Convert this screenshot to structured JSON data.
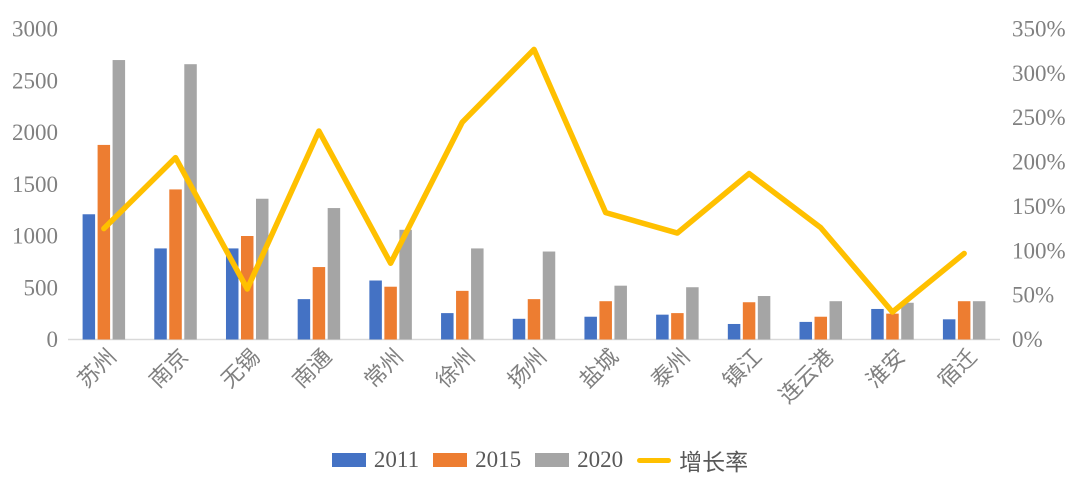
{
  "background_color": "#ffffff",
  "chart_data": {
    "type": "bar",
    "subtype": "combo-bar-line",
    "title": "",
    "xlabel": "",
    "ylabel": "",
    "grid": false,
    "legend_position": "bottom",
    "categories": [
      "苏州",
      "南京",
      "无锡",
      "南通",
      "常州",
      "徐州",
      "扬州",
      "盐城",
      "泰州",
      "镇江",
      "连云港",
      "淮安",
      "宿迁"
    ],
    "series": [
      {
        "name": "2011",
        "type": "bar",
        "axis": "left",
        "color": "#4472C4",
        "values": [
          1210,
          880,
          880,
          390,
          570,
          255,
          200,
          220,
          240,
          150,
          170,
          295,
          195
        ]
      },
      {
        "name": "2015",
        "type": "bar",
        "axis": "left",
        "color": "#ED7D31",
        "values": [
          1880,
          1450,
          1000,
          700,
          510,
          470,
          390,
          370,
          255,
          360,
          220,
          250,
          370
        ]
      },
      {
        "name": "2020",
        "type": "bar",
        "axis": "left",
        "color": "#A5A5A5",
        "values": [
          2700,
          2660,
          1360,
          1270,
          1060,
          880,
          850,
          520,
          505,
          420,
          370,
          355,
          370
        ]
      },
      {
        "name": "增长率",
        "type": "line",
        "axis": "right",
        "color": "#FFC000",
        "values": [
          125,
          205,
          57,
          235,
          86,
          245,
          327,
          143,
          120,
          187,
          126,
          31,
          97
        ]
      }
    ],
    "left_axis": {
      "min": 0,
      "max": 3000,
      "step": 500,
      "labels": [
        "0",
        "500",
        "1000",
        "1500",
        "2000",
        "2500",
        "3000"
      ]
    },
    "right_axis": {
      "min": 0,
      "max": 350,
      "step": 50,
      "labels": [
        "0%",
        "50%",
        "100%",
        "150%",
        "200%",
        "250%",
        "300%",
        "350%"
      ]
    },
    "axis_text_color": "#808080",
    "legend_text_color": "#595959",
    "axis_line_color": "#d9d9d9"
  }
}
